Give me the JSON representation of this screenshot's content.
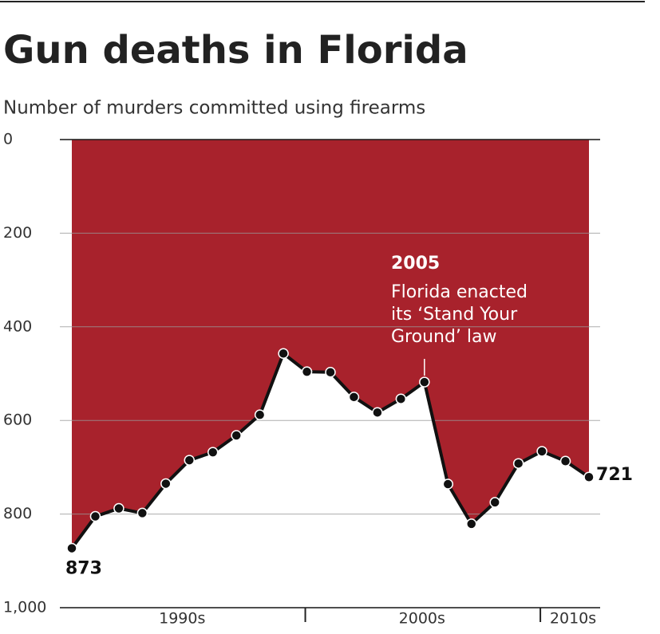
{
  "chart_data": {
    "type": "area-line",
    "title": "Gun deaths in Florida",
    "subtitle": "Number of murders committed using firearms",
    "categories": [
      null,
      null,
      null,
      null,
      null,
      null,
      null,
      null,
      null,
      null,
      null,
      null,
      null,
      null,
      null,
      null,
      null,
      null,
      null,
      null,
      null,
      null,
      null
    ],
    "x_groups": [
      "1990s",
      "2000s",
      "2010s"
    ],
    "values": [
      873,
      805,
      788,
      798,
      735,
      685,
      668,
      632,
      588,
      457,
      496,
      497,
      550,
      583,
      554,
      518,
      736,
      821,
      775,
      692,
      666,
      687,
      721
    ],
    "fill_color": "#a8222c",
    "line_color": "#111111",
    "ylim": [
      0,
      1000
    ],
    "y_inverted": true,
    "yticks": [
      0,
      200,
      400,
      600,
      800,
      {
        "value": 1000,
        "label": "1,000"
      }
    ],
    "grid": true,
    "annotation": {
      "index": 15,
      "title": "2005",
      "lines": [
        "Florida enacted",
        "its ‘Stand Your",
        "Ground’ law"
      ]
    }
  }
}
